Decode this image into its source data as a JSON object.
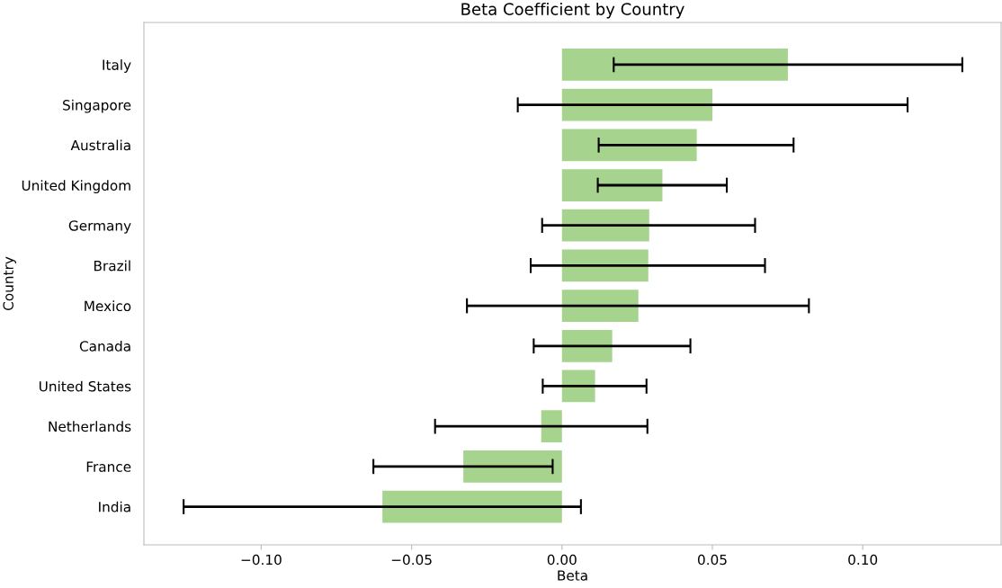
{
  "chart_data": {
    "type": "bar",
    "orientation": "horizontal",
    "title": "Beta Coefficient by Country",
    "xlabel": "Beta",
    "ylabel": "Country",
    "categories": [
      "Italy",
      "Singapore",
      "Australia",
      "United Kingdom",
      "Germany",
      "Brazil",
      "Mexico",
      "Canada",
      "United States",
      "Netherlands",
      "France",
      "India"
    ],
    "values": [
      0.0751,
      0.05,
      0.0448,
      0.0334,
      0.029,
      0.0287,
      0.0254,
      0.0167,
      0.011,
      -0.0069,
      -0.0328,
      -0.0597
    ],
    "errors": [
      [
        0.0172,
        0.1331
      ],
      [
        -0.0147,
        0.1149
      ],
      [
        0.0122,
        0.077
      ],
      [
        0.0119,
        0.0548
      ],
      [
        -0.0066,
        0.0642
      ],
      [
        -0.0104,
        0.0675
      ],
      [
        -0.0316,
        0.0821
      ],
      [
        -0.0094,
        0.0427
      ],
      [
        -0.0064,
        0.0281
      ],
      [
        -0.0422,
        0.0284
      ],
      [
        -0.0627,
        -0.0031
      ],
      [
        -0.1258,
        0.0063
      ]
    ],
    "color": "#a6d38d",
    "xlim": [
      -0.139,
      0.146
    ],
    "xticks": [
      {
        "value": -0.1,
        "label": "−0.10"
      },
      {
        "value": -0.05,
        "label": "−0.05"
      },
      {
        "value": 0,
        "label": "0.00"
      },
      {
        "value": 0.05,
        "label": "0.05"
      },
      {
        "value": 0.1,
        "label": "0.10"
      }
    ],
    "grid": false,
    "legend": false
  }
}
